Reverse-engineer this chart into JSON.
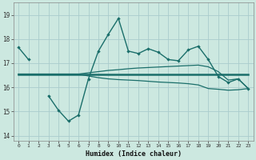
{
  "xlabel": "Humidex (Indice chaleur)",
  "background_color": "#cce8e0",
  "grid_color": "#aacccc",
  "line_color": "#1a6e6a",
  "ylim": [
    13.8,
    19.5
  ],
  "xlim": [
    -0.5,
    23.5
  ],
  "x": [
    0,
    1,
    2,
    3,
    4,
    5,
    6,
    7,
    8,
    9,
    10,
    11,
    12,
    13,
    14,
    15,
    16,
    17,
    18,
    19,
    20,
    21,
    22,
    23
  ],
  "main_line": [
    17.65,
    17.15,
    null,
    15.65,
    15.05,
    14.6,
    14.85,
    16.35,
    17.5,
    18.2,
    18.85,
    17.5,
    17.4,
    17.6,
    17.45,
    17.15,
    17.1,
    17.55,
    17.7,
    17.15,
    16.45,
    16.2,
    16.35,
    15.95
  ],
  "mean_line": [
    16.55,
    16.55,
    16.55,
    16.55,
    16.55,
    16.55,
    16.55,
    16.55,
    16.55,
    16.55,
    16.55,
    16.55,
    16.55,
    16.55,
    16.55,
    16.55,
    16.55,
    16.55,
    16.55,
    16.55,
    16.55,
    16.55,
    16.55,
    16.55
  ],
  "upper_line": [
    16.55,
    16.55,
    16.55,
    16.55,
    16.55,
    16.55,
    16.55,
    16.6,
    16.65,
    16.7,
    16.73,
    16.77,
    16.8,
    16.82,
    16.84,
    16.86,
    16.88,
    16.9,
    16.92,
    16.85,
    16.65,
    16.3,
    16.35,
    15.95
  ],
  "lower_line": [
    16.55,
    16.55,
    16.55,
    16.55,
    16.55,
    16.55,
    16.55,
    16.47,
    16.4,
    16.35,
    16.32,
    16.3,
    16.28,
    16.25,
    16.22,
    16.2,
    16.18,
    16.15,
    16.1,
    15.95,
    15.92,
    15.88,
    15.9,
    15.95
  ],
  "yticks": [
    14,
    15,
    16,
    17,
    18,
    19
  ],
  "xtick_labels": [
    "0",
    "1",
    "2",
    "3",
    "4",
    "5",
    "6",
    "7",
    "8",
    "9",
    "10",
    "11",
    "12",
    "13",
    "14",
    "15",
    "16",
    "17",
    "18",
    "19",
    "20",
    "21",
    "22",
    "23"
  ]
}
